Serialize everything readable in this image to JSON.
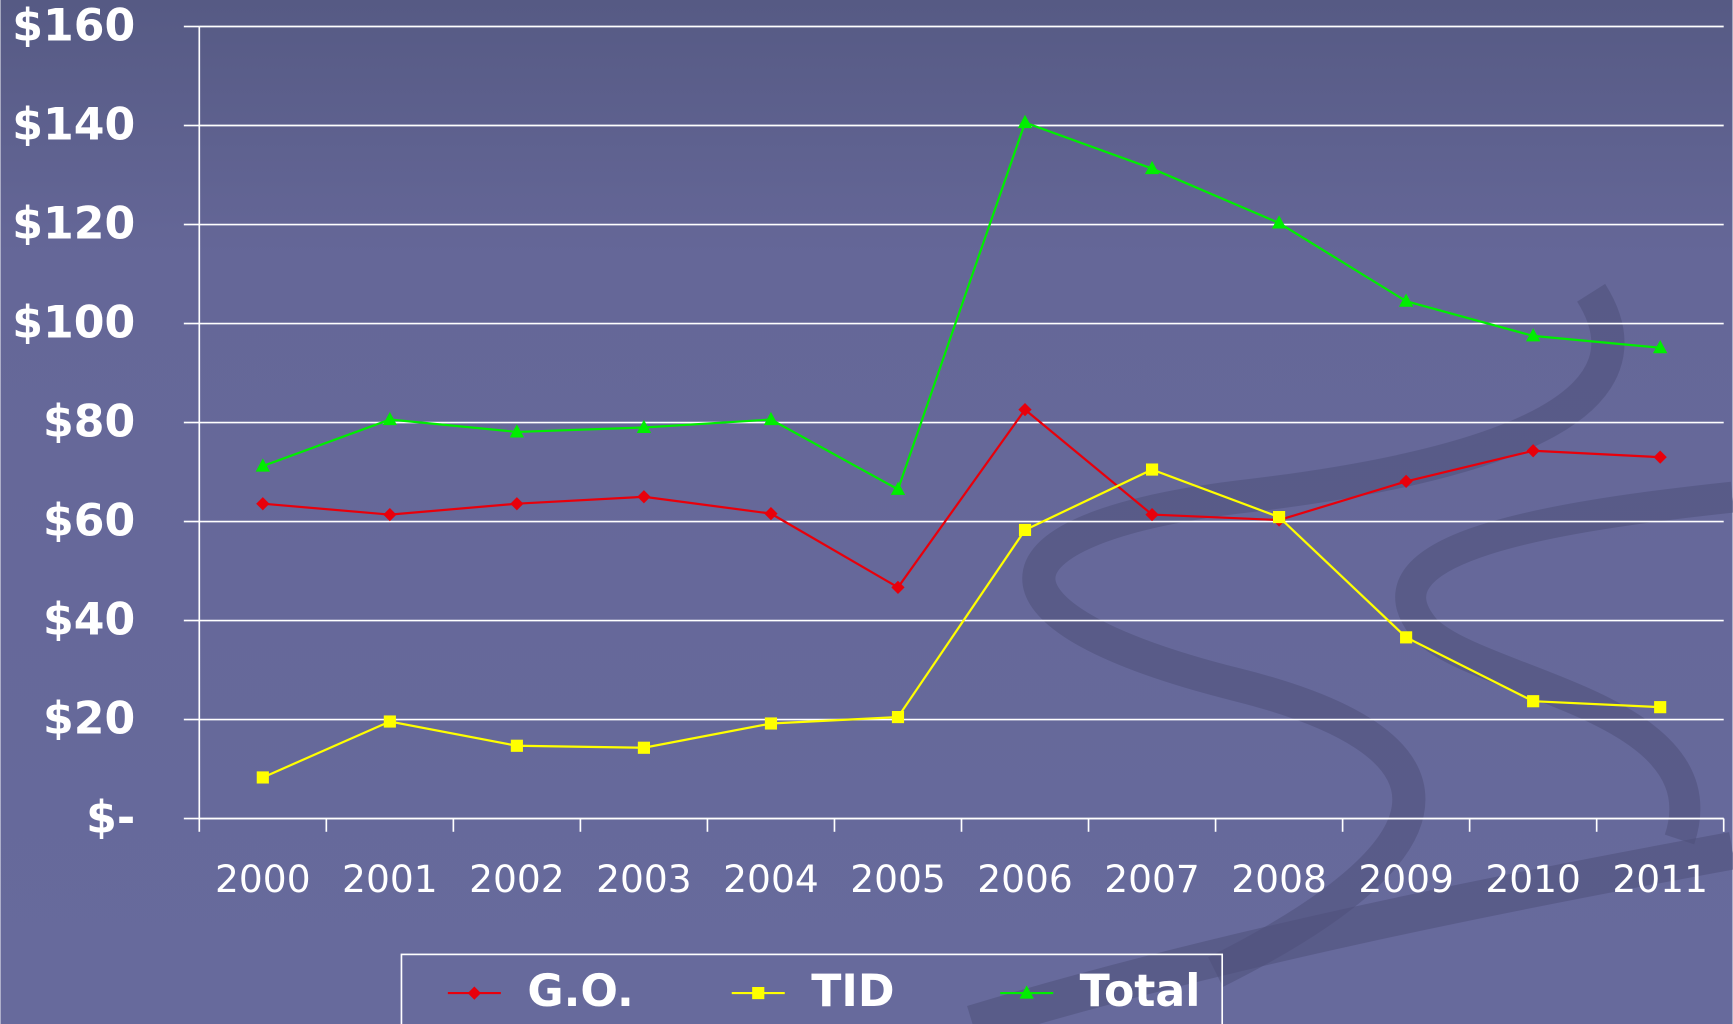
{
  "chart_data": {
    "type": "line",
    "categories": [
      "2000",
      "2001",
      "2002",
      "2003",
      "2004",
      "2005",
      "2006",
      "2007",
      "2008",
      "2009",
      "2010",
      "2011"
    ],
    "series": [
      {
        "name": "G.O.",
        "color": "#e8000b",
        "marker": "diamond",
        "values": [
          63.6,
          61.4,
          63.6,
          65,
          61.6,
          46.7,
          82.6,
          61.4,
          60.3,
          68.1,
          74.3,
          73
        ]
      },
      {
        "name": "TID",
        "color": "#ffff00",
        "marker": "square",
        "values": [
          8.3,
          19.6,
          14.7,
          14.3,
          19.2,
          20.5,
          58.3,
          70.5,
          60.9,
          36.6,
          23.7,
          22.5
        ]
      },
      {
        "name": "Total",
        "color": "#00ee00",
        "marker": "triangle",
        "values": [
          71.2,
          80.6,
          78.1,
          79,
          80.6,
          66.5,
          140.6,
          131.3,
          120.3,
          104.5,
          97.5,
          95.1
        ]
      }
    ],
    "ylim": [
      0,
      160
    ],
    "yticks": [
      {
        "value": 0,
        "label": "$-"
      },
      {
        "value": 20,
        "label": "$20"
      },
      {
        "value": 40,
        "label": "$40"
      },
      {
        "value": 60,
        "label": "$60"
      },
      {
        "value": 80,
        "label": "$80"
      },
      {
        "value": 100,
        "label": "$100"
      },
      {
        "value": 120,
        "label": "$120"
      },
      {
        "value": 140,
        "label": "$140"
      },
      {
        "value": 160,
        "label": "$160"
      }
    ],
    "grid": true,
    "legend": "bottom"
  }
}
